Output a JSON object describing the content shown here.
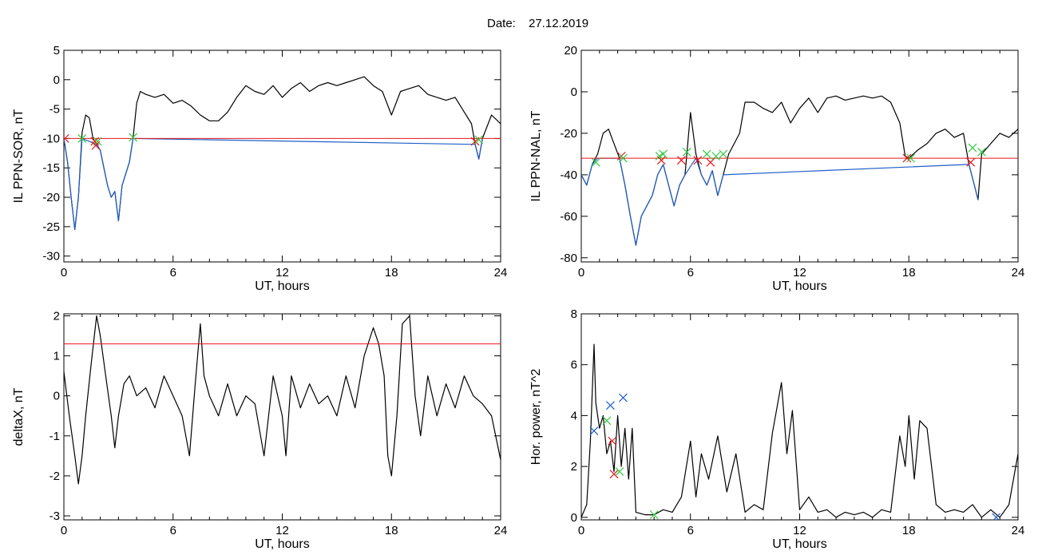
{
  "header": {
    "date_label": "Date:",
    "date_value": "27.12.2019"
  },
  "colors": {
    "black": "#000000",
    "red": "#e8161b",
    "blue": "#1f5fc7",
    "green": "#2ecc40",
    "axis": "#000000"
  },
  "chart_data": [
    {
      "id": "sor",
      "type": "line",
      "xlabel": "UT, hours",
      "ylabel": "IL PPN-SOR, nT",
      "xlim": [
        0,
        24
      ],
      "ylim": [
        -31,
        5
      ],
      "xticks": [
        0,
        6,
        12,
        18,
        24
      ],
      "yticks": [
        5,
        0,
        -5,
        -10,
        -15,
        -20,
        -25,
        -30
      ],
      "threshold": -10,
      "series": [
        {
          "color": "#000000",
          "x": [
            0,
            0.2,
            0.4,
            0.6,
            0.8,
            1.0,
            1.2,
            1.4,
            1.6,
            1.8,
            2.0,
            2.2,
            2.4,
            2.6,
            2.8,
            3.0,
            3.2,
            3.4,
            3.6,
            3.8,
            4.0,
            4.2,
            4.5,
            5.0,
            5.5,
            6.0,
            6.5,
            7.0,
            7.5,
            8.0,
            8.5,
            9.0,
            9.5,
            10.0,
            10.5,
            11.0,
            11.5,
            12.0,
            12.5,
            13.0,
            13.5,
            14.0,
            14.5,
            15.0,
            15.5,
            16.0,
            16.5,
            17.0,
            17.5,
            18.0,
            18.5,
            19.0,
            19.5,
            20.0,
            20.5,
            21.0,
            21.5,
            22.0,
            22.4,
            22.6,
            22.8,
            23.0,
            23.5,
            24.0
          ],
          "y": [
            -10,
            -14,
            -20,
            -25.5,
            -20,
            -9,
            -6,
            -6.5,
            -10,
            -11,
            -12,
            -15,
            -18,
            -20,
            -19,
            -24,
            -18,
            -16,
            -14,
            -10,
            -4,
            -2,
            -2.5,
            -3,
            -2.5,
            -4,
            -3.5,
            -4.5,
            -6,
            -7,
            -7,
            -5.5,
            -3,
            -1,
            -2,
            -2.5,
            -1,
            -3,
            -1.5,
            -0.5,
            -2,
            -1,
            -0.5,
            -1,
            -0.5,
            0,
            0.5,
            -1,
            -2,
            -6,
            -2,
            -1.5,
            -1,
            -2.5,
            -3,
            -3.5,
            -3,
            -5.5,
            -7.5,
            -11,
            -13.5,
            -10,
            -6,
            -7.5
          ]
        },
        {
          "color": "#1f5fc7",
          "x": [
            0,
            0.2,
            0.4,
            0.6,
            0.8,
            1.0,
            1.8,
            2.0,
            2.2,
            2.4,
            2.6,
            2.8,
            3.0,
            3.2,
            3.4,
            3.6,
            3.8,
            22.6,
            22.8,
            23.0
          ],
          "y": [
            -10,
            -14,
            -20,
            -25.5,
            -20,
            -10,
            -11,
            -12,
            -15,
            -18,
            -20,
            -19,
            -24,
            -18,
            -16,
            -14,
            -10,
            -11,
            -13.5,
            -10
          ]
        }
      ],
      "markers": [
        {
          "x": 0.05,
          "y": -10,
          "color": "#e8161b"
        },
        {
          "x": 1.0,
          "y": -10,
          "color": "#2ecc40"
        },
        {
          "x": 1.7,
          "y": -10.5,
          "color": "#e8161b"
        },
        {
          "x": 1.85,
          "y": -10.5,
          "color": "#2ecc40"
        },
        {
          "x": 1.75,
          "y": -11.2,
          "color": "#e8161b"
        },
        {
          "x": 3.8,
          "y": -9.8,
          "color": "#2ecc40"
        },
        {
          "x": 22.6,
          "y": -10.5,
          "color": "#e8161b"
        },
        {
          "x": 22.8,
          "y": -10.2,
          "color": "#2ecc40"
        }
      ]
    },
    {
      "id": "nal",
      "type": "line",
      "xlabel": "UT, hours",
      "ylabel": "IL PPN-NAL, nT",
      "xlim": [
        0,
        24
      ],
      "ylim": [
        -82,
        20
      ],
      "xticks": [
        0,
        6,
        12,
        18,
        24
      ],
      "yticks": [
        20,
        0,
        -20,
        -40,
        -60,
        -80
      ],
      "threshold": -32,
      "series": [
        {
          "color": "#000000",
          "x": [
            0,
            0.3,
            0.6,
            0.9,
            1.2,
            1.5,
            1.8,
            2.1,
            2.4,
            2.7,
            3.0,
            3.3,
            3.6,
            3.9,
            4.2,
            4.5,
            4.8,
            5.1,
            5.4,
            5.7,
            6.0,
            6.3,
            6.6,
            6.9,
            7.2,
            7.5,
            7.8,
            8.1,
            8.4,
            8.7,
            9.0,
            9.5,
            10.0,
            10.5,
            11.0,
            11.5,
            12.0,
            12.5,
            13.0,
            13.5,
            14.0,
            14.5,
            15.0,
            15.5,
            16.0,
            16.5,
            17.0,
            17.5,
            17.8,
            18.0,
            18.5,
            19.0,
            19.5,
            20.0,
            20.5,
            21.0,
            21.3,
            21.6,
            21.8,
            22.0,
            22.5,
            23.0,
            23.5,
            24.0
          ],
          "y": [
            -40,
            -45,
            -35,
            -30,
            -20,
            -18,
            -25,
            -32,
            -45,
            -60,
            -74,
            -60,
            -55,
            -50,
            -40,
            -35,
            -45,
            -55,
            -45,
            -40,
            -10,
            -30,
            -40,
            -45,
            -38,
            -50,
            -40,
            -30,
            -25,
            -20,
            -5,
            -5,
            -8,
            -10,
            -5,
            -15,
            -8,
            -3,
            -10,
            -3,
            -2,
            -4,
            -3,
            -2,
            -3,
            -2,
            -5,
            -15,
            -31,
            -32,
            -28,
            -25,
            -20,
            -18,
            -22,
            -20,
            -35,
            -45,
            -52,
            -30,
            -25,
            -20,
            -22,
            -18
          ]
        },
        {
          "color": "#1f5fc7",
          "x": [
            0,
            0.3,
            0.6,
            0.9,
            1.8,
            2.1,
            2.4,
            2.7,
            3.0,
            3.3,
            3.6,
            3.9,
            4.2,
            4.5,
            4.8,
            5.1,
            5.4,
            5.7,
            6.3,
            6.6,
            6.9,
            7.2,
            7.5,
            7.8,
            21.3,
            21.6,
            21.8
          ],
          "y": [
            -40,
            -45,
            -35,
            -32,
            -32,
            -32,
            -45,
            -60,
            -74,
            -60,
            -55,
            -50,
            -40,
            -35,
            -45,
            -55,
            -45,
            -40,
            -32,
            -40,
            -45,
            -38,
            -50,
            -40,
            -35,
            -45,
            -52
          ]
        }
      ],
      "markers": [
        {
          "x": 0.8,
          "y": -34,
          "color": "#2ecc40"
        },
        {
          "x": 2.2,
          "y": -31,
          "color": "#e8161b"
        },
        {
          "x": 2.3,
          "y": -32,
          "color": "#2ecc40"
        },
        {
          "x": 4.3,
          "y": -31,
          "color": "#2ecc40"
        },
        {
          "x": 4.4,
          "y": -33,
          "color": "#e8161b"
        },
        {
          "x": 4.5,
          "y": -30,
          "color": "#2ecc40"
        },
        {
          "x": 5.5,
          "y": -33,
          "color": "#e8161b"
        },
        {
          "x": 5.8,
          "y": -29,
          "color": "#2ecc40"
        },
        {
          "x": 6.4,
          "y": -33,
          "color": "#e8161b"
        },
        {
          "x": 6.9,
          "y": -30,
          "color": "#2ecc40"
        },
        {
          "x": 7.1,
          "y": -34,
          "color": "#e8161b"
        },
        {
          "x": 7.4,
          "y": -31,
          "color": "#2ecc40"
        },
        {
          "x": 7.8,
          "y": -30,
          "color": "#2ecc40"
        },
        {
          "x": 17.9,
          "y": -32,
          "color": "#e8161b"
        },
        {
          "x": 18.1,
          "y": -32,
          "color": "#2ecc40"
        },
        {
          "x": 21.4,
          "y": -34,
          "color": "#e8161b"
        },
        {
          "x": 21.5,
          "y": -27,
          "color": "#2ecc40"
        },
        {
          "x": 22.0,
          "y": -29,
          "color": "#2ecc40"
        }
      ]
    },
    {
      "id": "deltax",
      "type": "line",
      "xlabel": "UT, hours",
      "ylabel": "deltaX, nT",
      "xlim": [
        0,
        24
      ],
      "ylim": [
        -3.1,
        2.05
      ],
      "xticks": [
        0,
        6,
        12,
        18,
        24
      ],
      "yticks": [
        2,
        1,
        0,
        -1,
        -2,
        -3
      ],
      "threshold": 1.3,
      "series": [
        {
          "color": "#000000",
          "x": [
            0,
            0.3,
            0.6,
            0.8,
            1.0,
            1.2,
            1.5,
            1.8,
            2.0,
            2.3,
            2.6,
            2.8,
            3.0,
            3.3,
            3.6,
            4.0,
            4.5,
            5.0,
            5.5,
            6.0,
            6.5,
            6.9,
            7.2,
            7.5,
            7.7,
            8.0,
            8.5,
            9.0,
            9.5,
            10.0,
            10.5,
            11.0,
            11.5,
            12.0,
            12.2,
            12.5,
            13.0,
            13.5,
            14.0,
            14.5,
            15.0,
            15.5,
            16.0,
            16.5,
            17.0,
            17.3,
            17.6,
            17.8,
            18.0,
            18.3,
            18.6,
            19.0,
            19.3,
            19.6,
            20.0,
            20.5,
            21.0,
            21.5,
            22.0,
            22.5,
            23.0,
            23.5,
            24.0
          ],
          "y": [
            0.6,
            -0.5,
            -1.5,
            -2.2,
            -1.5,
            -0.5,
            0.8,
            2.0,
            1.5,
            0.5,
            -0.5,
            -1.3,
            -0.5,
            0.3,
            0.5,
            0,
            0.2,
            -0.3,
            0.5,
            0,
            -0.5,
            -1.5,
            0.2,
            1.8,
            0.5,
            0,
            -0.5,
            0.3,
            -0.5,
            0,
            -0.2,
            -1.5,
            0.5,
            -0.5,
            -1.5,
            0.5,
            -0.3,
            0.3,
            -0.2,
            0,
            -0.5,
            0.5,
            -0.3,
            1.0,
            1.7,
            1.3,
            0.5,
            -1.5,
            -2.0,
            -0.5,
            1.8,
            2.0,
            0,
            -1.0,
            0.5,
            -0.5,
            0.3,
            -0.3,
            0.5,
            0,
            -0.2,
            -0.5,
            -1.6
          ]
        }
      ],
      "markers": []
    },
    {
      "id": "horpower",
      "type": "line",
      "xlabel": "UT, hours",
      "ylabel": "Hor. power, nT^2",
      "xlim": [
        0,
        24
      ],
      "ylim": [
        -0.1,
        8
      ],
      "xticks": [
        0,
        6,
        12,
        18,
        24
      ],
      "yticks": [
        8,
        6,
        4,
        2,
        0
      ],
      "threshold": null,
      "series": [
        {
          "color": "#000000",
          "x": [
            0,
            0.3,
            0.5,
            0.7,
            0.8,
            1.0,
            1.2,
            1.4,
            1.6,
            1.8,
            2.0,
            2.2,
            2.4,
            2.6,
            2.8,
            3.0,
            3.5,
            4.0,
            4.5,
            5.0,
            5.5,
            6.0,
            6.3,
            6.6,
            7.0,
            7.5,
            8.0,
            8.5,
            9.0,
            9.5,
            10.0,
            10.5,
            11.0,
            11.3,
            11.6,
            12.0,
            12.5,
            13.0,
            13.5,
            14.0,
            14.5,
            15.0,
            15.5,
            16.0,
            16.5,
            17.0,
            17.5,
            17.8,
            18.0,
            18.3,
            18.6,
            19.0,
            19.5,
            20.0,
            20.5,
            21.0,
            21.5,
            22.0,
            22.5,
            23.0,
            23.5,
            24.0
          ],
          "y": [
            0,
            0.5,
            3.0,
            6.8,
            4.5,
            3.5,
            4.0,
            2.5,
            3.0,
            1.8,
            4.0,
            2.0,
            3.5,
            1.5,
            3.5,
            0.2,
            0.1,
            0.1,
            0.3,
            0.2,
            0.8,
            3.0,
            0.8,
            2.5,
            1.5,
            3.2,
            1.0,
            2.5,
            0.2,
            0.5,
            0.3,
            3.3,
            5.3,
            2.5,
            4.2,
            0.3,
            0.8,
            0.2,
            0.3,
            0,
            0.2,
            0.1,
            0.2,
            0,
            0.3,
            0.2,
            3.2,
            2.0,
            4.0,
            1.5,
            3.8,
            3.5,
            0.5,
            0.2,
            0.3,
            0.2,
            0.5,
            0,
            0.3,
            0,
            0.5,
            2.5
          ]
        }
      ],
      "markers": [
        {
          "x": 0.7,
          "y": 3.4,
          "color": "#1f5fc7"
        },
        {
          "x": 1.4,
          "y": 3.8,
          "color": "#2ecc40"
        },
        {
          "x": 1.6,
          "y": 4.4,
          "color": "#1f5fc7"
        },
        {
          "x": 1.7,
          "y": 3.0,
          "color": "#e8161b"
        },
        {
          "x": 1.8,
          "y": 1.7,
          "color": "#e8161b"
        },
        {
          "x": 2.1,
          "y": 1.8,
          "color": "#2ecc40"
        },
        {
          "x": 2.3,
          "y": 4.7,
          "color": "#1f5fc7"
        },
        {
          "x": 4.0,
          "y": 0.1,
          "color": "#2ecc40"
        },
        {
          "x": 22.8,
          "y": 0,
          "color": "#1f5fc7"
        }
      ]
    }
  ]
}
